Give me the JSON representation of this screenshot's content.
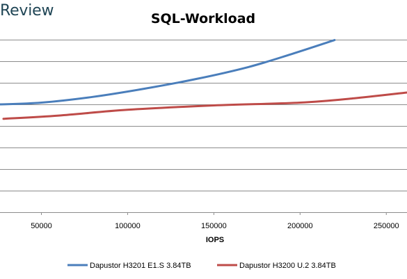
{
  "brand": {
    "label": "Review"
  },
  "chart_data": {
    "type": "line",
    "title": "SQL-Workload",
    "xlabel": "IOPS",
    "ylabel": "",
    "xlim": [
      26000,
      262000
    ],
    "ylim": [
      0,
      8
    ],
    "x_ticks": [
      50000,
      100000,
      150000,
      200000,
      250000
    ],
    "x_tick_labels": [
      "50000",
      "100000",
      "150000",
      "200000",
      "250000"
    ],
    "y_tick_labels_visible": false,
    "grid": "horizontal",
    "legend": "bottom",
    "series": [
      {
        "name": "Dapustor H3201 E1.S 3.84TB",
        "color": "#4a7ebb",
        "x": [
          26000,
          50000,
          80000,
          110000,
          140000,
          170000,
          195000,
          220000
        ],
        "y": [
          5.0,
          5.08,
          5.35,
          5.73,
          6.18,
          6.73,
          7.33,
          7.98
        ]
      },
      {
        "name": "Dapustor H3200 U.2 3.84TB",
        "color": "#be4b48",
        "x": [
          28000,
          60000,
          100000,
          150000,
          200000,
          230000,
          262000
        ],
        "y": [
          4.33,
          4.48,
          4.75,
          4.95,
          5.08,
          5.27,
          5.55
        ]
      }
    ]
  }
}
